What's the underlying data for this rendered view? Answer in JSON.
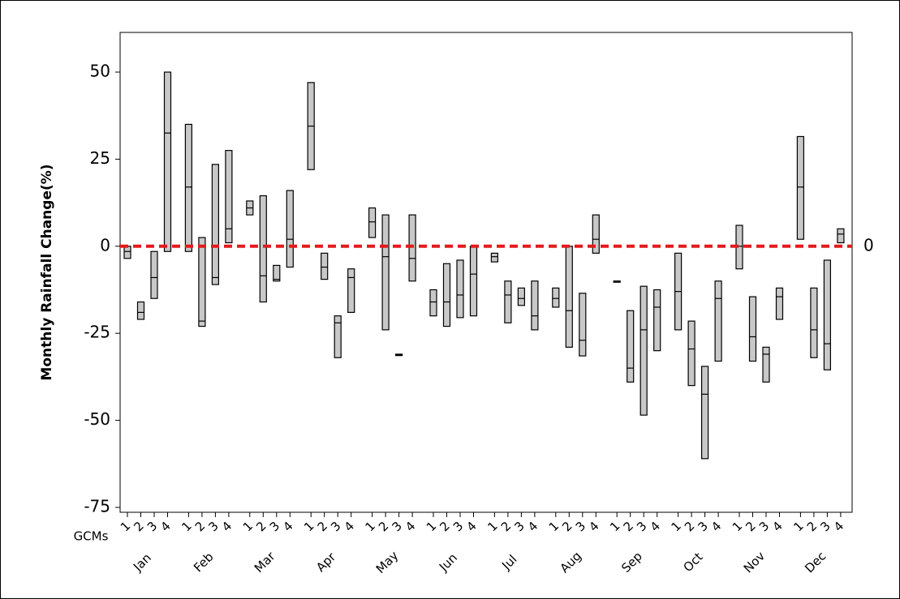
{
  "chart_data": {
    "type": "box",
    "ylabel": "Monthly Rainfall Change(%)",
    "x_group_label": "GCMs",
    "categories": [
      "Jan",
      "Feb",
      "Mar",
      "Apr",
      "May",
      "Jun",
      "Jul",
      "Aug",
      "Sep",
      "Oct",
      "Nov",
      "Dec"
    ],
    "gcm_labels": [
      "1",
      "2",
      "3",
      "4"
    ],
    "values": [
      [
        [
          -3.5,
          -1.5,
          0
        ],
        [
          -21,
          -19,
          -16
        ],
        [
          -15,
          -9,
          -1.5
        ],
        [
          -1.5,
          32.5,
          50
        ]
      ],
      [
        [
          -1.5,
          17,
          35
        ],
        [
          -23,
          -21.5,
          2.5
        ],
        [
          -11,
          -9,
          23.5
        ],
        [
          1,
          5,
          27.5
        ]
      ],
      [
        [
          9,
          11,
          13
        ],
        [
          -16,
          -8.5,
          14.5
        ],
        [
          -10,
          -9.5,
          -5.5
        ],
        [
          -6,
          2,
          16
        ]
      ],
      [
        [
          22,
          34.5,
          47
        ],
        [
          -9.5,
          -6,
          -2
        ],
        [
          -32,
          -22,
          -20
        ],
        [
          -19,
          -9,
          -6.5
        ]
      ],
      [
        [
          2.5,
          7,
          11
        ],
        [
          -24,
          -3,
          9
        ],
        [
          -31.4,
          -31.2,
          -31
        ],
        [
          -10,
          -3.5,
          9
        ]
      ],
      [
        [
          -20,
          -16,
          -12.5
        ],
        [
          -23,
          -16,
          -5
        ],
        [
          -20.5,
          -14,
          -4
        ],
        [
          -20,
          -8,
          0
        ]
      ],
      [
        [
          -4.5,
          -3,
          -2
        ],
        [
          -22,
          -14,
          -10
        ],
        [
          -17,
          -15,
          -12
        ],
        [
          -24,
          -20,
          -10
        ]
      ],
      [
        [
          -17.5,
          -15,
          -12
        ],
        [
          -29,
          -18.5,
          0
        ],
        [
          -31.5,
          -27,
          -13.5
        ],
        [
          -2,
          2,
          9
        ]
      ],
      [
        [
          -10,
          -10,
          -10
        ],
        [
          -39,
          -35,
          -18.5
        ],
        [
          -48.5,
          -24,
          -11.5
        ],
        [
          -30,
          -17.5,
          -12.5
        ]
      ],
      [
        [
          -24,
          -13,
          -2
        ],
        [
          -40,
          -29.5,
          -21.5
        ],
        [
          -61,
          -42.5,
          -34.5
        ],
        [
          -33,
          -15,
          -10
        ]
      ],
      [
        [
          -6.5,
          0,
          6
        ],
        [
          -33,
          -26,
          -14.5
        ],
        [
          -39,
          -31,
          -29
        ],
        [
          -21,
          -14.5,
          -12
        ]
      ],
      [
        [
          2,
          17,
          31.5
        ],
        [
          -32,
          -24,
          -12
        ],
        [
          -35.5,
          -28,
          -4
        ],
        [
          1,
          3.5,
          5
        ]
      ]
    ],
    "box_color": "#c8c8c8",
    "reference_line": 0,
    "reference_color": "#e41a1c",
    "ylim": [
      -76.4,
      61.4
    ],
    "yticks": [
      -75,
      -50,
      -25,
      0,
      25,
      50
    ]
  }
}
